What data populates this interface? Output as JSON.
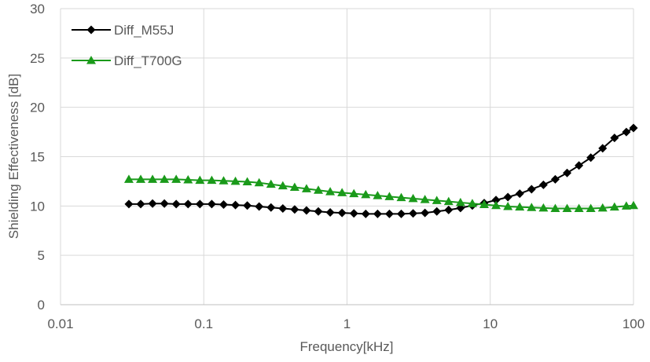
{
  "chart_data": {
    "type": "line",
    "title": "",
    "xlabel": "Frequency[kHz]",
    "ylabel": "Shielding Effectiveness [dB]",
    "x_scale": "log",
    "xlim": [
      0.01,
      100
    ],
    "ylim": [
      0,
      30
    ],
    "x_ticks": [
      "0.01",
      "0.1",
      "1",
      "10",
      "100"
    ],
    "y_ticks": [
      "0",
      "5",
      "10",
      "15",
      "20",
      "25",
      "30"
    ],
    "grid": true,
    "legend_position": "top-left",
    "x": [
      0.03,
      0.0363,
      0.0439,
      0.0531,
      0.0642,
      0.0777,
      0.094,
      0.1137,
      0.1376,
      0.1664,
      0.2013,
      0.2435,
      0.2946,
      0.3564,
      0.4311,
      0.5215,
      0.6309,
      0.7632,
      0.9233,
      1.117,
      1.351,
      1.635,
      1.977,
      2.392,
      2.894,
      3.501,
      4.235,
      5.123,
      6.198,
      7.498,
      9.071,
      10.97,
      13.28,
      16.06,
      19.43,
      23.51,
      28.44,
      34.4,
      41.62,
      50.35,
      60.91,
      73.69,
      89.14,
      100
    ],
    "series": [
      {
        "name": "Diff_M55J",
        "color": "#000000",
        "marker": "diamond",
        "values": [
          10.2,
          10.2,
          10.25,
          10.25,
          10.2,
          10.2,
          10.2,
          10.2,
          10.15,
          10.1,
          10.05,
          9.95,
          9.85,
          9.75,
          9.65,
          9.55,
          9.45,
          9.35,
          9.3,
          9.25,
          9.2,
          9.2,
          9.2,
          9.2,
          9.25,
          9.3,
          9.45,
          9.6,
          9.8,
          10.05,
          10.3,
          10.6,
          10.9,
          11.25,
          11.7,
          12.15,
          12.7,
          13.35,
          14.1,
          14.9,
          15.85,
          16.9,
          17.5,
          17.9
        ]
      },
      {
        "name": "Diff_T700G",
        "color": "#1a9a1a",
        "marker": "triangle",
        "values": [
          12.7,
          12.7,
          12.7,
          12.7,
          12.7,
          12.65,
          12.6,
          12.6,
          12.55,
          12.5,
          12.45,
          12.35,
          12.2,
          12.05,
          11.9,
          11.75,
          11.6,
          11.45,
          11.35,
          11.25,
          11.15,
          11.05,
          10.95,
          10.85,
          10.75,
          10.65,
          10.55,
          10.45,
          10.35,
          10.25,
          10.15,
          10.05,
          9.95,
          9.9,
          9.85,
          9.8,
          9.75,
          9.75,
          9.75,
          9.75,
          9.8,
          9.9,
          10.0,
          10.05
        ]
      }
    ]
  }
}
